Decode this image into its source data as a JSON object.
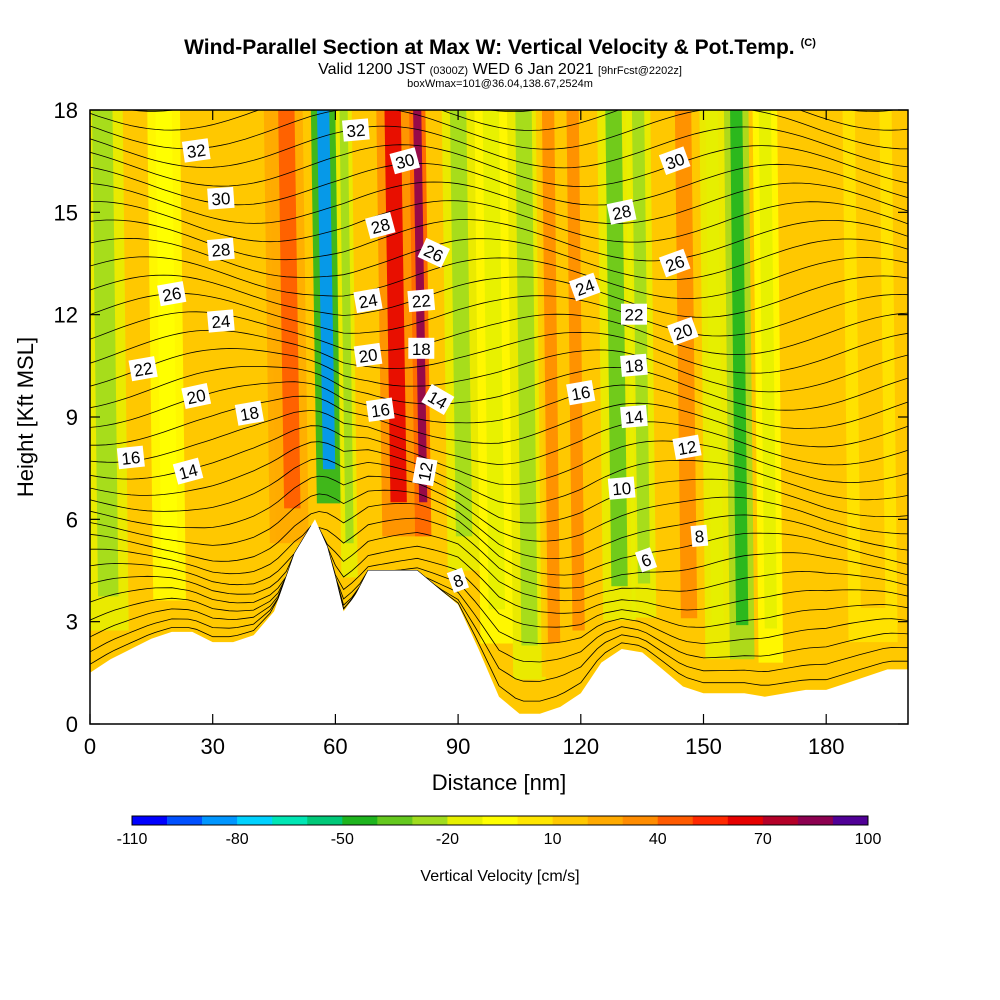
{
  "header": {
    "title": "Wind-Parallel Section at Max W: Vertical Velocity & Pot.Temp.",
    "title_mark": "(C)",
    "valid_prefix": "Valid 1200 JST",
    "valid_utc": "(0300Z)",
    "valid_date": "WED 6 Jan 2021",
    "forecast": "[9hrFcst@2202z]",
    "boxinfo": "boxWmax=101@36.04,138.67,2524m"
  },
  "chart_data": {
    "type": "heatmap",
    "xlabel": "Distance [nm]",
    "ylabel": "Height [Kft MSL]",
    "xlim": [
      0,
      200
    ],
    "ylim": [
      0,
      18
    ],
    "x_ticks": [
      0,
      30,
      60,
      90,
      120,
      150,
      180
    ],
    "y_ticks": [
      0,
      3,
      6,
      9,
      12,
      15,
      18
    ],
    "colorbar": {
      "label": "Vertical Velocity [cm/s]",
      "tick_labels": [
        "-110",
        "-80",
        "-50",
        "-20",
        "10",
        "40",
        "70",
        "100"
      ],
      "tick_values": [
        -110,
        -80,
        -50,
        -20,
        10,
        40,
        70,
        100
      ],
      "colors": [
        "#0000ff",
        "#0050ff",
        "#0096ff",
        "#00d2ff",
        "#00e6b4",
        "#00c878",
        "#1eb41e",
        "#64c81e",
        "#a0dc1e",
        "#e6f000",
        "#ffff00",
        "#ffe600",
        "#ffc800",
        "#ffaa00",
        "#ff8c00",
        "#ff5a00",
        "#ff2800",
        "#e60000",
        "#b40028",
        "#8c0050",
        "#500096"
      ]
    },
    "terrain_profile": {
      "x": [
        0,
        5,
        10,
        15,
        20,
        25,
        30,
        35,
        40,
        45,
        50,
        55,
        58,
        60,
        62,
        65,
        68,
        70,
        75,
        80,
        85,
        90,
        95,
        100,
        105,
        110,
        115,
        120,
        125,
        130,
        135,
        140,
        145,
        150,
        155,
        160,
        165,
        170,
        175,
        180,
        185,
        190,
        195,
        200
      ],
      "y": [
        1.5,
        1.9,
        2.2,
        2.5,
        2.7,
        2.7,
        2.4,
        2.4,
        2.6,
        3.3,
        5.0,
        6.0,
        5.2,
        4.3,
        3.3,
        3.8,
        4.5,
        4.5,
        4.5,
        4.5,
        4.0,
        3.5,
        2.2,
        0.8,
        0.3,
        0.3,
        0.5,
        0.9,
        1.8,
        2.2,
        2.1,
        1.6,
        1.1,
        0.9,
        0.9,
        0.9,
        0.8,
        0.9,
        1.0,
        1.0,
        1.2,
        1.4,
        1.6,
        1.6
      ]
    },
    "vertical_velocity_bands": [
      {
        "x": 3,
        "half_width": 5,
        "value": -25
      },
      {
        "x": 18,
        "half_width": 4,
        "value": -10
      },
      {
        "x": 45,
        "half_width": 5,
        "value": 25
      },
      {
        "x": 48,
        "half_width": 4,
        "value": 45
      },
      {
        "x": 57,
        "half_width": 3,
        "value": -90
      },
      {
        "x": 62,
        "half_width": 2,
        "value": -30
      },
      {
        "x": 74,
        "half_width": 4,
        "value": 65
      },
      {
        "x": 80,
        "half_width": 2,
        "value": 80
      },
      {
        "x": 90,
        "half_width": 4,
        "value": -30
      },
      {
        "x": 98,
        "half_width": 4,
        "value": -15
      },
      {
        "x": 106,
        "half_width": 4,
        "value": -25
      },
      {
        "x": 112,
        "half_width": 3,
        "value": 30
      },
      {
        "x": 118,
        "half_width": 3,
        "value": 35
      },
      {
        "x": 128,
        "half_width": 4,
        "value": -35
      },
      {
        "x": 134,
        "half_width": 3,
        "value": -25
      },
      {
        "x": 145,
        "half_width": 4,
        "value": 35
      },
      {
        "x": 152,
        "half_width": 3,
        "value": -20
      },
      {
        "x": 158,
        "half_width": 3,
        "value": -45
      },
      {
        "x": 165,
        "half_width": 3,
        "value": -12
      },
      {
        "x": 190,
        "half_width": 6,
        "value": 15
      }
    ],
    "contour_labels": [
      {
        "text": "32",
        "x": 26,
        "y": 16.8,
        "angle": -8
      },
      {
        "text": "30",
        "x": 32,
        "y": 15.4,
        "angle": -4
      },
      {
        "text": "28",
        "x": 32,
        "y": 13.9,
        "angle": -5
      },
      {
        "text": "26",
        "x": 20,
        "y": 12.6,
        "angle": -10
      },
      {
        "text": "24",
        "x": 32,
        "y": 11.8,
        "angle": -5
      },
      {
        "text": "22",
        "x": 13,
        "y": 10.4,
        "angle": -10
      },
      {
        "text": "20",
        "x": 26,
        "y": 9.6,
        "angle": -12
      },
      {
        "text": "18",
        "x": 39,
        "y": 9.1,
        "angle": -10
      },
      {
        "text": "16",
        "x": 10,
        "y": 7.8,
        "angle": -6
      },
      {
        "text": "14",
        "x": 24,
        "y": 7.4,
        "angle": -15
      },
      {
        "text": "32",
        "x": 65,
        "y": 17.4,
        "angle": -5
      },
      {
        "text": "30",
        "x": 77,
        "y": 16.5,
        "angle": -15
      },
      {
        "text": "28",
        "x": 71,
        "y": 14.6,
        "angle": -15
      },
      {
        "text": "26",
        "x": 84,
        "y": 13.8,
        "angle": 25
      },
      {
        "text": "24",
        "x": 68,
        "y": 12.4,
        "angle": -10
      },
      {
        "text": "22",
        "x": 81,
        "y": 12.4,
        "angle": -5
      },
      {
        "text": "20",
        "x": 68,
        "y": 10.8,
        "angle": -8
      },
      {
        "text": "18",
        "x": 81,
        "y": 11.0,
        "angle": 0
      },
      {
        "text": "16",
        "x": 71,
        "y": 9.2,
        "angle": -8
      },
      {
        "text": "14",
        "x": 85,
        "y": 9.5,
        "angle": 30
      },
      {
        "text": "12",
        "x": 82,
        "y": 7.4,
        "angle": -80
      },
      {
        "text": "8",
        "x": 90,
        "y": 4.2,
        "angle": -20
      },
      {
        "text": "30",
        "x": 143,
        "y": 16.5,
        "angle": -20
      },
      {
        "text": "28",
        "x": 130,
        "y": 15.0,
        "angle": -12
      },
      {
        "text": "26",
        "x": 143,
        "y": 13.5,
        "angle": -20
      },
      {
        "text": "24",
        "x": 121,
        "y": 12.8,
        "angle": -20
      },
      {
        "text": "22",
        "x": 133,
        "y": 12.0,
        "angle": 0
      },
      {
        "text": "20",
        "x": 145,
        "y": 11.5,
        "angle": -20
      },
      {
        "text": "18",
        "x": 133,
        "y": 10.5,
        "angle": -5
      },
      {
        "text": "16",
        "x": 120,
        "y": 9.7,
        "angle": -10
      },
      {
        "text": "14",
        "x": 133,
        "y": 9.0,
        "angle": -5
      },
      {
        "text": "12",
        "x": 146,
        "y": 8.1,
        "angle": -10
      },
      {
        "text": "10",
        "x": 130,
        "y": 6.9,
        "angle": -5
      },
      {
        "text": "8",
        "x": 149,
        "y": 5.5,
        "angle": -5
      },
      {
        "text": "6",
        "x": 136,
        "y": 4.8,
        "angle": -20
      }
    ]
  }
}
